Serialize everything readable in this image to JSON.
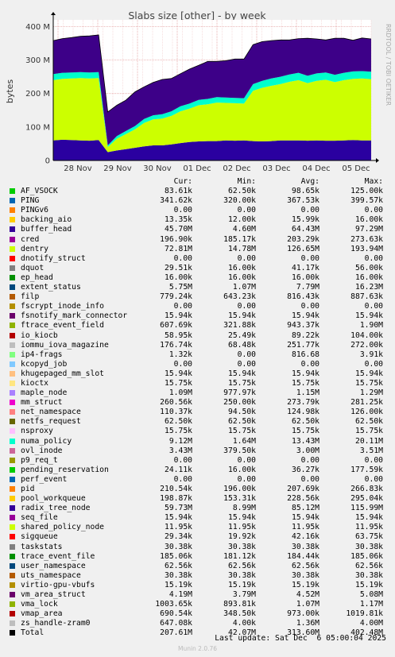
{
  "chart_data": {
    "type": "area",
    "title": "Slabs size [other] - by week",
    "ylabel": "bytes",
    "side_label": "RRDTOOL / TOBI OETIKER",
    "x_ticks": [
      "28 Nov",
      "29 Nov",
      "30 Nov",
      "01 Dec",
      "02 Dec",
      "03 Dec",
      "04 Dec",
      "05 Dec"
    ],
    "y_ticks": [
      "0",
      "100 M",
      "200 M",
      "300 M",
      "400 M"
    ],
    "ylim": [
      0,
      420000000
    ],
    "stacked": true,
    "series_note": "stacked main layers approximated from the week graph",
    "layers": [
      {
        "name": "buffer_head",
        "color": "#2a00a0",
        "values": [
          60000000.0,
          62000000.0,
          61000000.0,
          60000000.0,
          59000000.0,
          61000000.0,
          25000000.0,
          30000000.0,
          34000000.0,
          38000000.0,
          42000000.0,
          45000000.0,
          45000000.0,
          48000000.0,
          52000000.0,
          55000000.0,
          57000000.0,
          58000000.0,
          58000000.0,
          60000000.0,
          59000000.0,
          60000000.0,
          58000000.0,
          57000000.0,
          58000000.0,
          60000000.0,
          60000000.0,
          60000000.0,
          59000000.0,
          60000000.0,
          59000000.0,
          59000000.0,
          60000000.0,
          61000000.0,
          60000000.0,
          60000000.0
        ]
      },
      {
        "name": "dentry",
        "color": "#ccff00",
        "values": [
          180000000.0,
          182000000.0,
          184000000.0,
          186000000.0,
          186000000.0,
          185000000.0,
          15000000.0,
          35000000.0,
          45000000.0,
          55000000.0,
          70000000.0,
          78000000.0,
          80000000.0,
          85000000.0,
          95000000.0,
          100000000.0,
          108000000.0,
          110000000.0,
          115000000.0,
          112000000.0,
          112000000.0,
          110000000.0,
          150000000.0,
          160000000.0,
          165000000.0,
          168000000.0,
          175000000.0,
          180000000.0,
          172000000.0,
          178000000.0,
          182000000.0,
          175000000.0,
          180000000.0,
          183000000.0,
          185000000.0,
          183000000.0
        ]
      },
      {
        "name": "radix_tree_node",
        "color": "#00ffcc",
        "values": [
          18000000.0,
          18000000.0,
          18000000.0,
          18000000.0,
          18000000.0,
          18000000.0,
          5000000.0,
          8000000.0,
          9000000.0,
          10000000.0,
          12000000.0,
          12000000.0,
          13000000.0,
          14000000.0,
          15000000.0,
          15000000.0,
          16000000.0,
          16000000.0,
          16000000.0,
          16000000.0,
          16000000.0,
          16000000.0,
          20000000.0,
          21000000.0,
          22000000.0,
          22000000.0,
          22000000.0,
          22000000.0,
          22000000.0,
          22000000.0,
          22000000.0,
          22000000.0,
          22000000.0,
          22000000.0,
          22000000.0,
          22000000.0
        ]
      },
      {
        "name": "other",
        "color": "#3d0088",
        "values": [
          100000000.0,
          102000000.0,
          104000000.0,
          107000000.0,
          109000000.0,
          111000000.0,
          100000000.0,
          92000000.0,
          92000000.0,
          102000000.0,
          96000000.0,
          98000000.0,
          104000000.0,
          98000000.0,
          97000000.0,
          103000000.0,
          103000000.0,
          112000000.0,
          107000000.0,
          110000000.0,
          116000000.0,
          117000000.0,
          118000000.0,
          117000000.0,
          113000000.0,
          110000000.0,
          103000000.0,
          102000000.0,
          112000000.0,
          103000000.0,
          97000000.0,
          109000000.0,
          103000000.0,
          93000000.0,
          99000000.0,
          98000000.0
        ]
      }
    ],
    "table_headers": [
      "Cur:",
      "Min:",
      "Avg:",
      "Max:"
    ],
    "series": [
      {
        "name": "AF_VSOCK",
        "color": "#00cc00",
        "cur": "83.61k",
        "min": "62.50k",
        "avg": "98.65k",
        "max": "125.00k"
      },
      {
        "name": "PING",
        "color": "#0066b3",
        "cur": "341.62k",
        "min": "320.00k",
        "avg": "367.53k",
        "max": "399.57k"
      },
      {
        "name": "PINGv6",
        "color": "#ff8000",
        "cur": "0.00",
        "min": "0.00",
        "avg": "0.00",
        "max": "0.00"
      },
      {
        "name": "backing_aio",
        "color": "#ffcc00",
        "cur": "13.35k",
        "min": "12.00k",
        "avg": "15.99k",
        "max": "16.00k"
      },
      {
        "name": "buffer_head",
        "color": "#330099",
        "cur": "45.70M",
        "min": "4.60M",
        "avg": "64.43M",
        "max": "97.29M"
      },
      {
        "name": "cred",
        "color": "#990099",
        "cur": "196.90k",
        "min": "185.17k",
        "avg": "203.29k",
        "max": "273.63k"
      },
      {
        "name": "dentry",
        "color": "#ccff00",
        "cur": "72.81M",
        "min": "14.78M",
        "avg": "126.65M",
        "max": "193.94M"
      },
      {
        "name": "dnotify_struct",
        "color": "#ff0000",
        "cur": "0.00",
        "min": "0.00",
        "avg": "0.00",
        "max": "0.00"
      },
      {
        "name": "dquot",
        "color": "#808080",
        "cur": "29.51k",
        "min": "16.00k",
        "avg": "41.17k",
        "max": "56.00k"
      },
      {
        "name": "ep_head",
        "color": "#008f00",
        "cur": "16.00k",
        "min": "16.00k",
        "avg": "16.00k",
        "max": "16.00k"
      },
      {
        "name": "extent_status",
        "color": "#00487d",
        "cur": "5.75M",
        "min": "1.07M",
        "avg": "7.79M",
        "max": "16.23M"
      },
      {
        "name": "filp",
        "color": "#b35a00",
        "cur": "779.24k",
        "min": "643.23k",
        "avg": "816.43k",
        "max": "887.63k"
      },
      {
        "name": "fscrypt_inode_info",
        "color": "#b38f00",
        "cur": "0.00",
        "min": "0.00",
        "avg": "0.00",
        "max": "0.00"
      },
      {
        "name": "fsnotify_mark_connector",
        "color": "#6b006b",
        "cur": "15.94k",
        "min": "15.94k",
        "avg": "15.94k",
        "max": "15.94k"
      },
      {
        "name": "ftrace_event_field",
        "color": "#8fb300",
        "cur": "607.69k",
        "min": "321.88k",
        "avg": "943.37k",
        "max": "1.90M"
      },
      {
        "name": "io_kiocb",
        "color": "#b30000",
        "cur": "58.95k",
        "min": "25.49k",
        "avg": "89.22k",
        "max": "104.00k"
      },
      {
        "name": "iommu_iova_magazine",
        "color": "#bebebe",
        "cur": "176.74k",
        "min": "68.48k",
        "avg": "251.77k",
        "max": "272.00k"
      },
      {
        "name": "ip4-frags",
        "color": "#80ff80",
        "cur": "1.32k",
        "min": "0.00",
        "avg": "816.68",
        "max": "3.91k"
      },
      {
        "name": "kcopyd_job",
        "color": "#80c9ff",
        "cur": "0.00",
        "min": "0.00",
        "avg": "0.00",
        "max": "0.00"
      },
      {
        "name": "khugepaged_mm_slot",
        "color": "#ffc080",
        "cur": "15.94k",
        "min": "15.94k",
        "avg": "15.94k",
        "max": "15.94k"
      },
      {
        "name": "kioctx",
        "color": "#ffe680",
        "cur": "15.75k",
        "min": "15.75k",
        "avg": "15.75k",
        "max": "15.75k"
      },
      {
        "name": "maple_node",
        "color": "#aa80ff",
        "cur": "1.09M",
        "min": "977.97k",
        "avg": "1.15M",
        "max": "1.29M"
      },
      {
        "name": "mm_struct",
        "color": "#ee00cc",
        "cur": "260.56k",
        "min": "250.00k",
        "avg": "273.79k",
        "max": "281.25k"
      },
      {
        "name": "net_namespace",
        "color": "#ff8080",
        "cur": "110.37k",
        "min": "94.50k",
        "avg": "124.98k",
        "max": "126.00k"
      },
      {
        "name": "netfs_request",
        "color": "#666600",
        "cur": "62.50k",
        "min": "62.50k",
        "avg": "62.50k",
        "max": "62.50k"
      },
      {
        "name": "nsproxy",
        "color": "#ffbfff",
        "cur": "15.75k",
        "min": "15.75k",
        "avg": "15.75k",
        "max": "15.75k"
      },
      {
        "name": "numa_policy",
        "color": "#00ffcc",
        "cur": "9.12M",
        "min": "1.64M",
        "avg": "13.43M",
        "max": "20.11M"
      },
      {
        "name": "ovl_inode",
        "color": "#cc6699",
        "cur": "3.43M",
        "min": "379.50k",
        "avg": "3.00M",
        "max": "3.51M"
      },
      {
        "name": "p9_req_t",
        "color": "#999900",
        "cur": "0.00",
        "min": "0.00",
        "avg": "0.00",
        "max": "0.00"
      },
      {
        "name": "pending_reservation",
        "color": "#00cc00",
        "cur": "24.11k",
        "min": "16.00k",
        "avg": "36.27k",
        "max": "177.59k"
      },
      {
        "name": "perf_event",
        "color": "#0066b3",
        "cur": "0.00",
        "min": "0.00",
        "avg": "0.00",
        "max": "0.00"
      },
      {
        "name": "pid",
        "color": "#ff8000",
        "cur": "210.54k",
        "min": "196.00k",
        "avg": "207.69k",
        "max": "266.83k"
      },
      {
        "name": "pool_workqueue",
        "color": "#ffcc00",
        "cur": "198.87k",
        "min": "153.31k",
        "avg": "228.56k",
        "max": "295.04k"
      },
      {
        "name": "radix_tree_node",
        "color": "#330099",
        "cur": "59.73M",
        "min": "8.99M",
        "avg": "85.12M",
        "max": "115.99M"
      },
      {
        "name": "seq_file",
        "color": "#990099",
        "cur": "15.94k",
        "min": "15.94k",
        "avg": "15.94k",
        "max": "15.94k"
      },
      {
        "name": "shared_policy_node",
        "color": "#ccff00",
        "cur": "11.95k",
        "min": "11.95k",
        "avg": "11.95k",
        "max": "11.95k"
      },
      {
        "name": "sigqueue",
        "color": "#ff0000",
        "cur": "29.34k",
        "min": "19.92k",
        "avg": "42.16k",
        "max": "63.75k"
      },
      {
        "name": "taskstats",
        "color": "#808080",
        "cur": "30.38k",
        "min": "30.38k",
        "avg": "30.38k",
        "max": "30.38k"
      },
      {
        "name": "trace_event_file",
        "color": "#008f00",
        "cur": "185.06k",
        "min": "181.12k",
        "avg": "184.44k",
        "max": "185.06k"
      },
      {
        "name": "user_namespace",
        "color": "#00487d",
        "cur": "62.56k",
        "min": "62.56k",
        "avg": "62.56k",
        "max": "62.56k"
      },
      {
        "name": "uts_namespace",
        "color": "#b35a00",
        "cur": "30.38k",
        "min": "30.38k",
        "avg": "30.38k",
        "max": "30.38k"
      },
      {
        "name": "virtio-gpu-vbufs",
        "color": "#b38f00",
        "cur": "15.19k",
        "min": "15.19k",
        "avg": "15.19k",
        "max": "15.19k"
      },
      {
        "name": "vm_area_struct",
        "color": "#6b006b",
        "cur": "4.19M",
        "min": "3.79M",
        "avg": "4.52M",
        "max": "5.08M"
      },
      {
        "name": "vma_lock",
        "color": "#8fb300",
        "cur": "1003.65k",
        "min": "893.81k",
        "avg": "1.07M",
        "max": "1.17M"
      },
      {
        "name": "vmap_area",
        "color": "#b30000",
        "cur": "690.54k",
        "min": "348.50k",
        "avg": "973.00k",
        "max": "1019.81k"
      },
      {
        "name": "zs_handle-zram0",
        "color": "#bebebe",
        "cur": "647.08k",
        "min": "4.00k",
        "avg": "1.36M",
        "max": "4.00M"
      },
      {
        "name": "Total",
        "color": "#000000",
        "cur": "207.61M",
        "min": "42.07M",
        "avg": "313.60M",
        "max": "402.48M"
      }
    ]
  },
  "footer": {
    "last_update": "Last update: Sat Dec  6 05:00:04 2025",
    "version": "Munin 2.0.76"
  }
}
